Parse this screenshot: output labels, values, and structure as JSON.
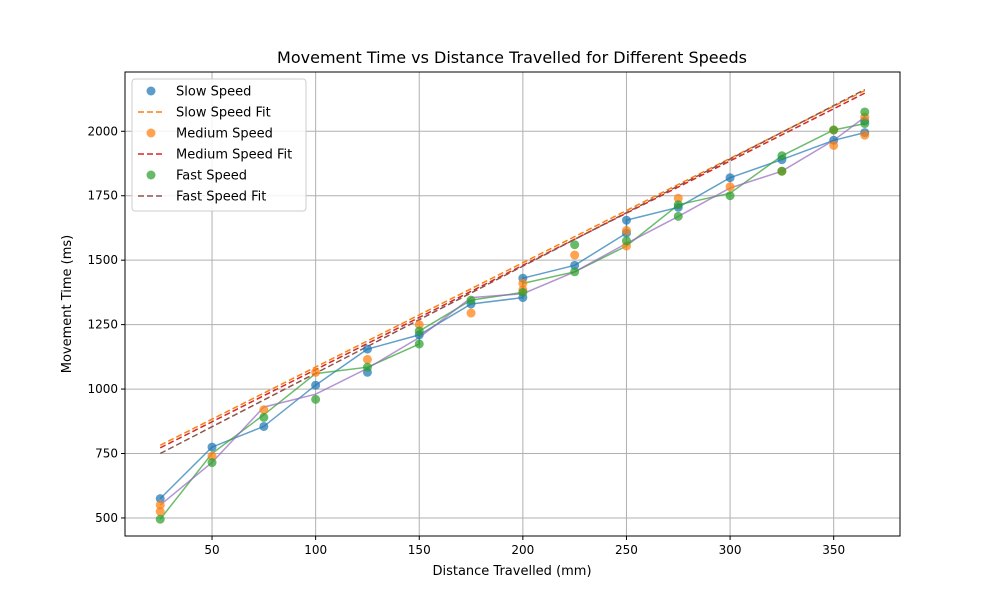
{
  "chart_data": {
    "type": "scatter",
    "title": "Movement Time vs Distance Travelled for Different Speeds",
    "xlabel": "Distance Travelled (mm)",
    "ylabel": "Movement Time (ms)",
    "xlim": [
      8,
      382
    ],
    "ylim": [
      430,
      2230
    ],
    "xticks": [
      50,
      100,
      150,
      200,
      250,
      300,
      350
    ],
    "yticks": [
      500,
      750,
      1000,
      1250,
      1500,
      1750,
      2000
    ],
    "grid": true,
    "legend_position": "top-left",
    "x": [
      25,
      50,
      75,
      100,
      125,
      150,
      175,
      200,
      200,
      225,
      225,
      250,
      250,
      275,
      300,
      325,
      350,
      365
    ],
    "series": [
      {
        "name": "Slow Speed",
        "kind": "scatter",
        "color": "#1f77b4",
        "points": [
          [
            25,
            575
          ],
          [
            50,
            775
          ],
          [
            75,
            855
          ],
          [
            100,
            1015
          ],
          [
            125,
            1065
          ],
          [
            125,
            1155
          ],
          [
            150,
            1210
          ],
          [
            175,
            1330
          ],
          [
            200,
            1355
          ],
          [
            200,
            1430
          ],
          [
            225,
            1480
          ],
          [
            250,
            1605
          ],
          [
            250,
            1655
          ],
          [
            275,
            1705
          ],
          [
            300,
            1820
          ],
          [
            325,
            1890
          ],
          [
            350,
            1965
          ],
          [
            365,
            1995
          ],
          [
            365,
            2040
          ]
        ],
        "connect": [
          [
            25,
            575
          ],
          [
            50,
            775
          ],
          [
            75,
            855
          ],
          [
            100,
            1015
          ],
          [
            125,
            1155
          ],
          [
            150,
            1210
          ],
          [
            175,
            1330
          ],
          [
            200,
            1355
          ],
          [
            200,
            1430
          ],
          [
            225,
            1480
          ],
          [
            250,
            1605
          ],
          [
            250,
            1655
          ],
          [
            275,
            1705
          ],
          [
            300,
            1820
          ],
          [
            325,
            1890
          ],
          [
            350,
            1965
          ],
          [
            365,
            1995
          ]
        ]
      },
      {
        "name": "Slow Speed Fit",
        "kind": "fit",
        "color": "#ff7f0e",
        "start": [
          25,
          782
        ],
        "end": [
          365,
          2158
        ]
      },
      {
        "name": "Medium Speed",
        "kind": "scatter",
        "color": "#ff7f0e",
        "points": [
          [
            25,
            525
          ],
          [
            25,
            550
          ],
          [
            50,
            740
          ],
          [
            75,
            920
          ],
          [
            100,
            1065
          ],
          [
            125,
            1115
          ],
          [
            150,
            1250
          ],
          [
            175,
            1295
          ],
          [
            200,
            1385
          ],
          [
            200,
            1410
          ],
          [
            225,
            1520
          ],
          [
            250,
            1555
          ],
          [
            250,
            1615
          ],
          [
            275,
            1740
          ],
          [
            300,
            1785
          ],
          [
            325,
            1845
          ],
          [
            350,
            1945
          ],
          [
            350,
            2005
          ],
          [
            365,
            1985
          ],
          [
            365,
            2055
          ]
        ]
      },
      {
        "name": "Medium Speed Fit",
        "kind": "fit",
        "color": "#d62728",
        "start": [
          25,
          772
        ],
        "end": [
          365,
          2148
        ]
      },
      {
        "name": "Fast Speed",
        "kind": "scatter",
        "color": "#2ca02c",
        "points": [
          [
            25,
            495
          ],
          [
            50,
            715
          ],
          [
            75,
            890
          ],
          [
            100,
            960
          ],
          [
            125,
            1085
          ],
          [
            150,
            1175
          ],
          [
            150,
            1225
          ],
          [
            175,
            1345
          ],
          [
            200,
            1375
          ],
          [
            225,
            1455
          ],
          [
            225,
            1560
          ],
          [
            250,
            1575
          ],
          [
            275,
            1670
          ],
          [
            275,
            1715
          ],
          [
            300,
            1750
          ],
          [
            325,
            1845
          ],
          [
            325,
            1905
          ],
          [
            350,
            2005
          ],
          [
            365,
            2030
          ],
          [
            365,
            2075
          ]
        ],
        "connect": [
          [
            25,
            495
          ],
          [
            50,
            750
          ],
          [
            75,
            900
          ],
          [
            100,
            1060
          ],
          [
            125,
            1085
          ],
          [
            150,
            1175
          ],
          [
            150,
            1225
          ],
          [
            175,
            1345
          ],
          [
            200,
            1375
          ],
          [
            200,
            1410
          ],
          [
            225,
            1455
          ],
          [
            250,
            1555
          ],
          [
            275,
            1715
          ],
          [
            300,
            1760
          ],
          [
            325,
            1905
          ],
          [
            350,
            2005
          ],
          [
            365,
            2030
          ]
        ]
      },
      {
        "name": "Fast Speed Fit",
        "kind": "fit",
        "color": "#8c564b",
        "start": [
          25,
          750
        ],
        "end": [
          365,
          2162
        ]
      },
      {
        "name": "",
        "kind": "trace",
        "color": "#9467bd",
        "connect": [
          [
            25,
            550
          ],
          [
            50,
            715
          ],
          [
            75,
            930
          ],
          [
            100,
            980
          ],
          [
            125,
            1080
          ],
          [
            150,
            1200
          ],
          [
            175,
            1355
          ],
          [
            200,
            1370
          ],
          [
            225,
            1455
          ],
          [
            250,
            1565
          ],
          [
            275,
            1670
          ],
          [
            300,
            1780
          ],
          [
            325,
            1845
          ],
          [
            350,
            1965
          ],
          [
            365,
            2055
          ]
        ]
      }
    ]
  }
}
